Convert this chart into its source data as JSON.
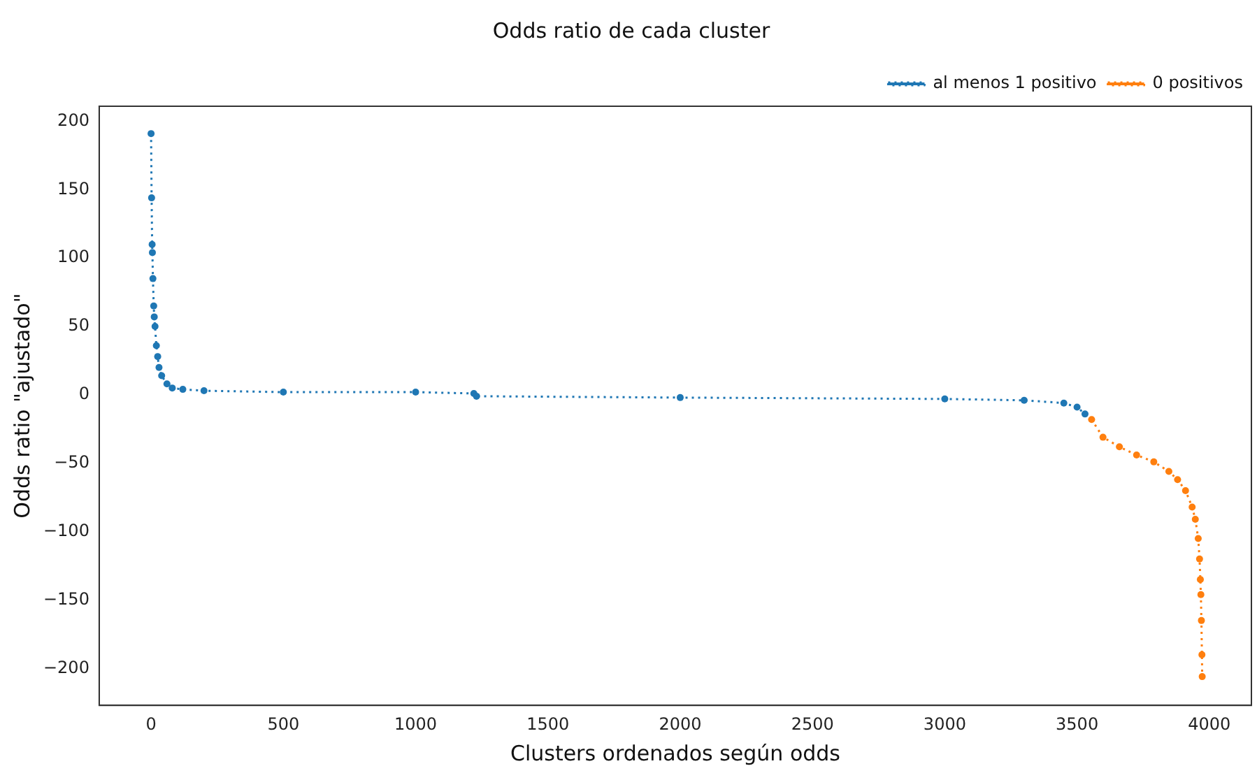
{
  "chart_data": {
    "type": "line",
    "title": "Odds ratio de cada cluster",
    "xlabel": "Clusters ordenados según odds",
    "ylabel": "Odds ratio \"ajustado\"",
    "series": [
      {
        "name": "al menos 1 positivo",
        "color": "#1f77b4",
        "x": [
          0,
          2,
          4,
          5,
          7,
          10,
          12,
          15,
          20,
          25,
          30,
          40,
          60,
          80,
          120,
          200,
          500,
          1000,
          1220,
          1230,
          2000,
          3000,
          3300,
          3450,
          3500,
          3530
        ],
        "values": [
          191,
          144,
          110,
          104,
          85,
          65,
          57,
          50,
          36,
          28,
          20,
          14,
          8,
          5,
          4,
          3,
          2,
          2,
          1,
          -1,
          -2,
          -3,
          -4,
          -6,
          -9,
          -14
        ]
      },
      {
        "name": "0 positivos",
        "color": "#ff7f0e",
        "x": [
          3555,
          3598,
          3660,
          3725,
          3790,
          3847,
          3880,
          3910,
          3935,
          3947,
          3958,
          3963,
          3966,
          3968,
          3970,
          3972,
          3973
        ],
        "values": [
          -18,
          -31,
          -38,
          -44,
          -49,
          -56,
          -62,
          -70,
          -82,
          -91,
          -105,
          -120,
          -135,
          -146,
          -165,
          -190,
          -206
        ]
      }
    ],
    "xlim": [
      -196,
      4159
    ],
    "ylim": [
      -227,
      211
    ],
    "xticks": [
      0,
      500,
      1000,
      1500,
      2000,
      2500,
      3000,
      3500,
      4000
    ],
    "yticks": [
      -200,
      -150,
      -100,
      -50,
      0,
      50,
      100,
      150,
      200
    ],
    "grid": false,
    "legend": "top right",
    "marker": "circle",
    "line_style": "dotted"
  }
}
